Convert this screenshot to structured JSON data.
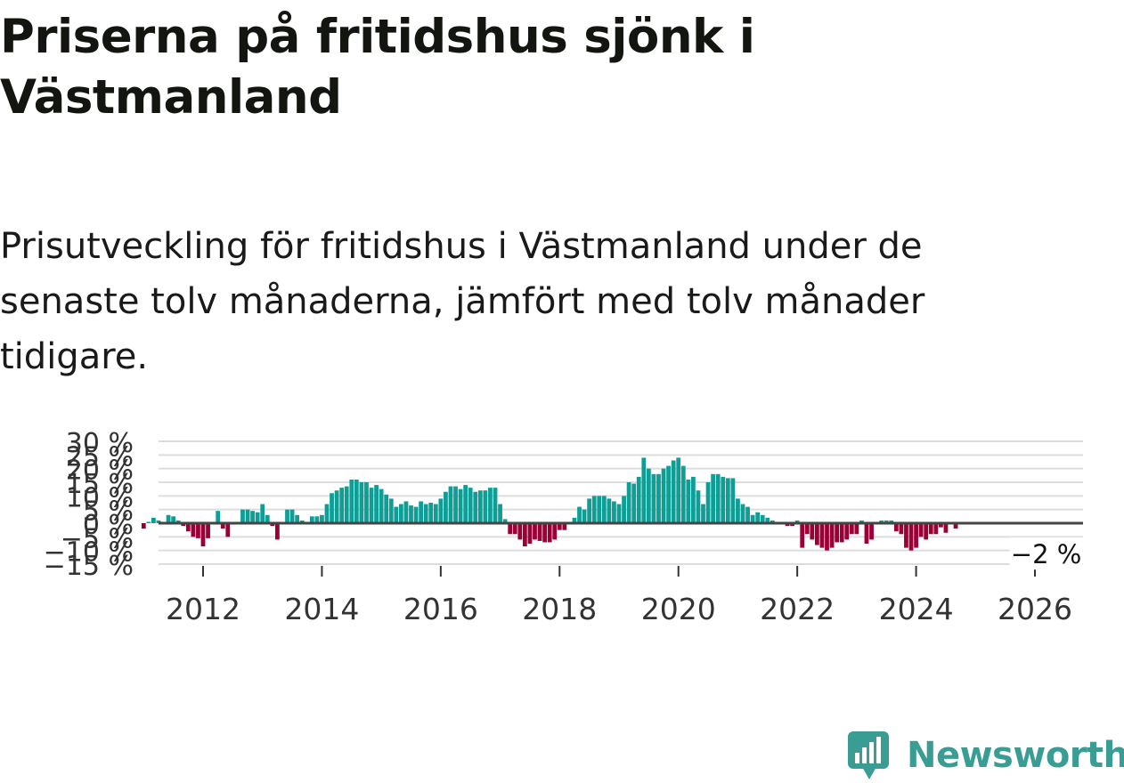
{
  "title": "Priserna på fritidshus sjönk i Västmanland",
  "subtitle": "Prisutveckling för fritidshus i Västmanland under de senaste tolv månaderna, jämfört med tolv månader tidigare.",
  "brand": {
    "name": "Newsworthy",
    "icon": "bar-chart-speech-bubble-icon",
    "color": "#3a9d94"
  },
  "colors": {
    "positive": "#0f9e96",
    "negative": "#9a0036",
    "zero_line": "#444444",
    "grid": "#dddddd",
    "axis_text": "#333333"
  },
  "chart_data": {
    "type": "bar",
    "title": "",
    "xlabel": "",
    "ylabel": "",
    "ylim": [
      -15,
      30
    ],
    "yticks": [
      -15,
      -10,
      -5,
      0,
      5,
      10,
      15,
      20,
      25,
      30
    ],
    "ytick_labels": [
      "−15 %",
      "−10 %",
      "−5 %",
      "0 %",
      "5 %",
      "10 %",
      "15 %",
      "20 %",
      "25 %",
      "30 %"
    ],
    "xticks": [
      2012,
      2014,
      2016,
      2018,
      2020,
      2022,
      2024,
      2026
    ],
    "xtick_labels": [
      "2012",
      "2014",
      "2016",
      "2018",
      "2020",
      "2022",
      "2024",
      "2026"
    ],
    "x_start": "2011-01",
    "interval": "month",
    "grid": true,
    "annotation": {
      "text": "−2 %",
      "x": "2026-02",
      "y": -2
    },
    "values": [
      -2,
      0.5,
      2,
      1,
      0.5,
      3,
      2.5,
      1,
      -1,
      -3,
      -5,
      -5.5,
      -8.5,
      -5.5,
      0.5,
      4.5,
      -2,
      -5,
      -0.5,
      0.5,
      5,
      5,
      4.5,
      4,
      7,
      3,
      -1,
      -6,
      0,
      5,
      5,
      3,
      1,
      0.5,
      2.5,
      2.5,
      3,
      7,
      11,
      12,
      13,
      13.5,
      16,
      16,
      15,
      15,
      13,
      14,
      12.5,
      10.5,
      9,
      6,
      7,
      8,
      6.5,
      6,
      8,
      7,
      7.5,
      7,
      9,
      11.5,
      13.5,
      13.5,
      12.5,
      14,
      13,
      11.5,
      12,
      12,
      13,
      13,
      7,
      1.5,
      -4,
      -4,
      -6,
      -8.5,
      -7.5,
      -6,
      -6.5,
      -7,
      -7,
      -6,
      -2.5,
      -2.5,
      0.5,
      2,
      6,
      5,
      9,
      10,
      10,
      10,
      9,
      8,
      7,
      10,
      15,
      14.5,
      17,
      24,
      20,
      18,
      18,
      20,
      21,
      23,
      24,
      21,
      16,
      17,
      12,
      7,
      15,
      18,
      18,
      17,
      16.5,
      16.5,
      9,
      7,
      6,
      3,
      4,
      3,
      2,
      1,
      0.5,
      0.5,
      -1,
      -1,
      1,
      -9,
      -4,
      -6,
      -8,
      -9,
      -10,
      -9,
      -7,
      -7,
      -6,
      -4,
      -4,
      1,
      -7.5,
      -6,
      0.5,
      1,
      1,
      1,
      -3,
      -4,
      -9,
      -10,
      -9,
      -5,
      -6,
      -4,
      -4,
      -1.5,
      -3.5,
      0,
      -2
    ]
  }
}
